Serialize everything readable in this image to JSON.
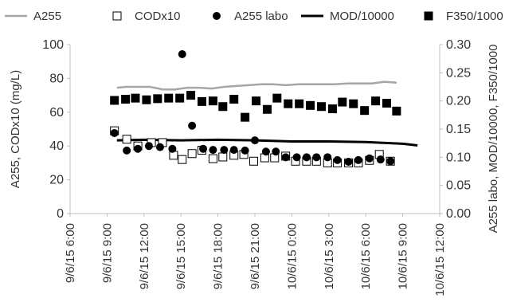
{
  "chart_data": {
    "type": "line",
    "xlabel": "",
    "ylabel": "A255, CODx10 (mg/L)",
    "y2label": "A255 labo, MOD/10000, F350/1000",
    "ylim": [
      0,
      100
    ],
    "y2lim": [
      0,
      0.3
    ],
    "yticks": [
      "0",
      "20",
      "40",
      "60",
      "80",
      "100"
    ],
    "y2ticks": [
      "0.00",
      "0.05",
      "0.10",
      "0.15",
      "0.20",
      "0.25",
      "0.30"
    ],
    "xlim_hours": [
      0,
      30
    ],
    "xticks": [
      {
        "h": 0,
        "label": "9/6/15 6:00"
      },
      {
        "h": 3,
        "label": "9/6/15 9:00"
      },
      {
        "h": 6,
        "label": "9/6/15 12:00"
      },
      {
        "h": 9,
        "label": "9/6/15 15:00"
      },
      {
        "h": 12,
        "label": "9/6/15 18:00"
      },
      {
        "h": 15,
        "label": "9/6/15 21:00"
      },
      {
        "h": 18,
        "label": "10/6/15 0:00"
      },
      {
        "h": 21,
        "label": "10/6/15 3:00"
      },
      {
        "h": 24,
        "label": "10/6/15 6:00"
      },
      {
        "h": 27,
        "label": "10/6/15 9:00"
      },
      {
        "h": 30,
        "label": "10/6/15 12:00"
      }
    ],
    "legend_position": "top",
    "grid": false,
    "series": [
      {
        "name": "A255",
        "type": "line",
        "axis": "left",
        "color": "#a6a6a6",
        "x": [
          3.8,
          4.5,
          5.5,
          6.5,
          7.5,
          8.5,
          9.5,
          10.5,
          11.5,
          12.5,
          13.5,
          14.5,
          15.5,
          16.5,
          17.5,
          18.5,
          19.5,
          20.5,
          21.5,
          22.5,
          23.5,
          24.5,
          25.5,
          26.5
        ],
        "y": [
          74.5,
          75,
          75,
          75,
          73.5,
          73.5,
          74.5,
          74.5,
          74,
          75,
          75.5,
          76,
          76.5,
          76.5,
          76,
          76.5,
          76.5,
          76.5,
          76.5,
          77,
          77,
          77,
          78,
          77.5
        ]
      },
      {
        "name": "CODx10",
        "type": "scatter",
        "marker": "square-open",
        "axis": "left",
        "color": "#000000",
        "x": [
          3.6,
          4.6,
          5.5,
          6.6,
          7.5,
          8.4,
          9.1,
          9.9,
          10.7,
          11.6,
          12.4,
          13.3,
          14.1,
          14.9,
          15.8,
          16.6,
          17.5,
          18.3,
          19.2,
          20.0,
          20.9,
          21.7,
          22.6,
          23.4,
          24.3,
          25.1,
          26.0
        ],
        "y": [
          49,
          44,
          40,
          42,
          42,
          34.5,
          32,
          35.5,
          37.5,
          32.5,
          33.5,
          34.5,
          35,
          31,
          33,
          33,
          34,
          31,
          31,
          31,
          30,
          30,
          30,
          30,
          31.5,
          35,
          31
        ]
      },
      {
        "name": "A255 labo",
        "type": "scatter",
        "marker": "circle",
        "axis": "right",
        "color": "#000000",
        "x": [
          3.6,
          4.6,
          5.5,
          6.4,
          7.3,
          8.3,
          9.1,
          9.9,
          10.8,
          11.6,
          12.5,
          13.3,
          14.2,
          15.0,
          15.9,
          16.7,
          17.5,
          18.4,
          19.2,
          20.0,
          20.9,
          21.7,
          22.6,
          23.4,
          24.3,
          25.2,
          26.0
        ],
        "y": [
          0.143,
          0.112,
          0.115,
          0.12,
          0.118,
          0.115,
          0.283,
          0.156,
          0.115,
          0.113,
          0.113,
          0.113,
          0.112,
          0.13,
          0.11,
          0.11,
          0.1,
          0.1,
          0.1,
          0.1,
          0.1,
          0.095,
          0.092,
          0.095,
          0.098,
          0.096,
          0.093
        ]
      },
      {
        "name": "MOD/10000",
        "type": "line",
        "axis": "right",
        "color": "#000000",
        "x": [
          3.8,
          6,
          9,
          12,
          15,
          18,
          21,
          24,
          27,
          28.2
        ],
        "y": [
          0.13,
          0.131,
          0.13,
          0.131,
          0.13,
          0.128,
          0.128,
          0.127,
          0.124,
          0.121
        ]
      },
      {
        "name": "F350/1000",
        "type": "scatter",
        "marker": "square",
        "axis": "right",
        "color": "#000000",
        "x": [
          3.6,
          4.5,
          5.3,
          6.2,
          7.1,
          8.0,
          8.9,
          9.8,
          10.7,
          11.6,
          12.4,
          13.3,
          14.2,
          15.1,
          16.0,
          16.8,
          17.7,
          18.6,
          19.5,
          20.4,
          21.3,
          22.1,
          23.0,
          23.9,
          24.8,
          25.7,
          26.5
        ],
        "y": [
          0.201,
          0.203,
          0.205,
          0.202,
          0.204,
          0.205,
          0.205,
          0.21,
          0.199,
          0.2,
          0.19,
          0.203,
          0.171,
          0.2,
          0.185,
          0.205,
          0.195,
          0.195,
          0.192,
          0.19,
          0.186,
          0.198,
          0.195,
          0.183,
          0.2,
          0.196,
          0.182
        ]
      }
    ]
  }
}
